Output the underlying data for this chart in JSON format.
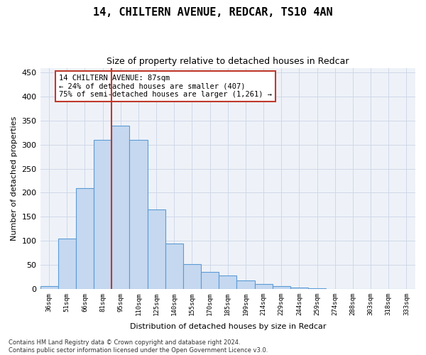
{
  "title_line1": "14, CHILTERN AVENUE, REDCAR, TS10 4AN",
  "title_line2": "Size of property relative to detached houses in Redcar",
  "xlabel": "Distribution of detached houses by size in Redcar",
  "ylabel": "Number of detached properties",
  "categories": [
    "36sqm",
    "51sqm",
    "66sqm",
    "81sqm",
    "95sqm",
    "110sqm",
    "125sqm",
    "140sqm",
    "155sqm",
    "170sqm",
    "185sqm",
    "199sqm",
    "214sqm",
    "229sqm",
    "244sqm",
    "259sqm",
    "274sqm",
    "288sqm",
    "303sqm",
    "318sqm",
    "333sqm"
  ],
  "values": [
    5,
    105,
    210,
    310,
    340,
    310,
    165,
    95,
    52,
    35,
    28,
    18,
    10,
    5,
    3,
    1,
    0,
    0,
    0,
    0,
    0
  ],
  "bar_color": "#c5d8f0",
  "bar_edge_color": "#5b9bd5",
  "vline_color": "#c0392b",
  "annotation_text": "14 CHILTERN AVENUE: 87sqm\n← 24% of detached houses are smaller (407)\n75% of semi-detached houses are larger (1,261) →",
  "annotation_box_color": "#c0392b",
  "grid_color": "#d0d8e8",
  "background_color": "#eef2f8",
  "ylim": [
    0,
    460
  ],
  "yticks": [
    0,
    50,
    100,
    150,
    200,
    250,
    300,
    350,
    400,
    450
  ],
  "footnote_line1": "Contains HM Land Registry data © Crown copyright and database right 2024.",
  "footnote_line2": "Contains public sector information licensed under the Open Government Licence v3.0."
}
